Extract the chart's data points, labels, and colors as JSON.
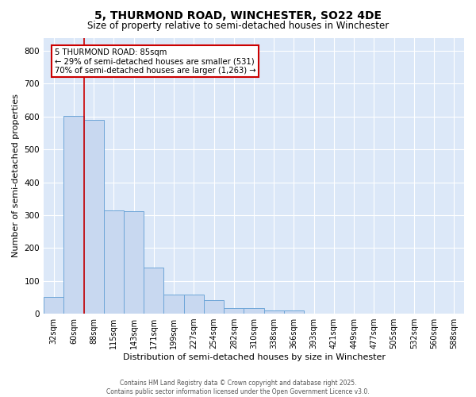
{
  "title": "5, THURMOND ROAD, WINCHESTER, SO22 4DE",
  "subtitle": "Size of property relative to semi-detached houses in Winchester",
  "xlabel": "Distribution of semi-detached houses by size in Winchester",
  "ylabel": "Number of semi-detached properties",
  "footer_line1": "Contains HM Land Registry data © Crown copyright and database right 2025.",
  "footer_line2": "Contains public sector information licensed under the Open Government Licence v3.0.",
  "categories": [
    "32sqm",
    "60sqm",
    "88sqm",
    "115sqm",
    "143sqm",
    "171sqm",
    "199sqm",
    "227sqm",
    "254sqm",
    "282sqm",
    "310sqm",
    "338sqm",
    "366sqm",
    "393sqm",
    "421sqm",
    "449sqm",
    "477sqm",
    "505sqm",
    "532sqm",
    "560sqm",
    "588sqm"
  ],
  "values": [
    52,
    601,
    589,
    315,
    313,
    140,
    58,
    57,
    42,
    18,
    16,
    11,
    9,
    0,
    0,
    0,
    0,
    0,
    0,
    0,
    0
  ],
  "bar_color": "#c8d8f0",
  "bar_edge_color": "#6ea6d8",
  "property_line_x": 1.5,
  "annotation_text_line1": "5 THURMOND ROAD: 85sqm",
  "annotation_text_line2": "← 29% of semi-detached houses are smaller (531)",
  "annotation_text_line3": "70% of semi-detached houses are larger (1,263) →",
  "box_facecolor": "#ffffff",
  "box_edgecolor": "#cc0000",
  "line_color": "#cc0000",
  "bg_color": "#dce8f8",
  "grid_color": "#ffffff",
  "ylim": [
    0,
    840
  ],
  "yticks": [
    0,
    100,
    200,
    300,
    400,
    500,
    600,
    700,
    800
  ],
  "title_fontsize": 10,
  "subtitle_fontsize": 8.5,
  "tick_fontsize": 7,
  "ylabel_fontsize": 8,
  "xlabel_fontsize": 8,
  "footer_fontsize": 5.5
}
